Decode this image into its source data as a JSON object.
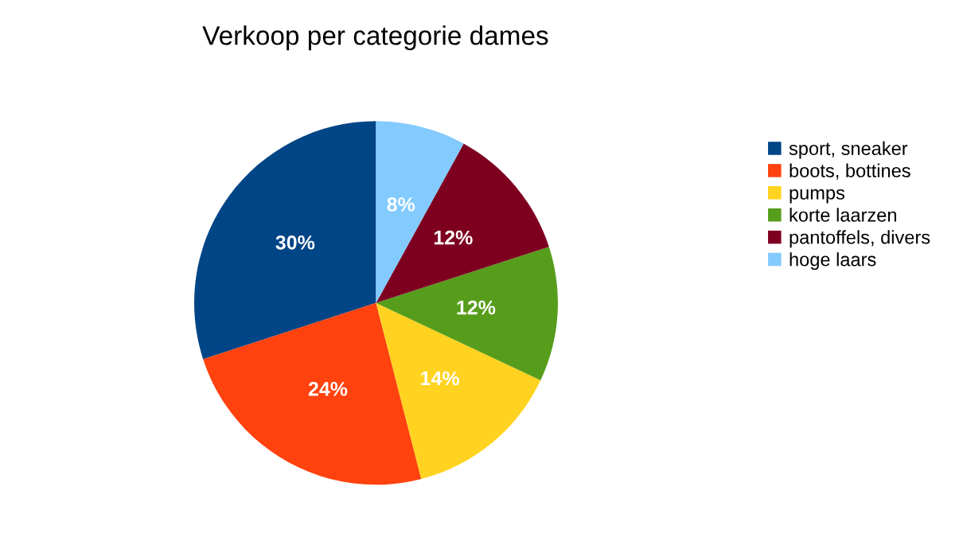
{
  "chart_data": {
    "type": "pie",
    "title": "Verkoop per categorie dames",
    "categories": [
      "sport, sneaker",
      "boots, bottines",
      "pumps",
      "korte laarzen",
      "pantoffels, divers",
      "hoge laars"
    ],
    "values": [
      30,
      24,
      14,
      12,
      12,
      8
    ],
    "colors": [
      "#004586",
      "#ff420e",
      "#ffd320",
      "#579d1c",
      "#7e0021",
      "#83caff"
    ],
    "value_labels": [
      "30%",
      "24%",
      "14%",
      "12%",
      "12%",
      "8%"
    ],
    "legend": "right"
  }
}
